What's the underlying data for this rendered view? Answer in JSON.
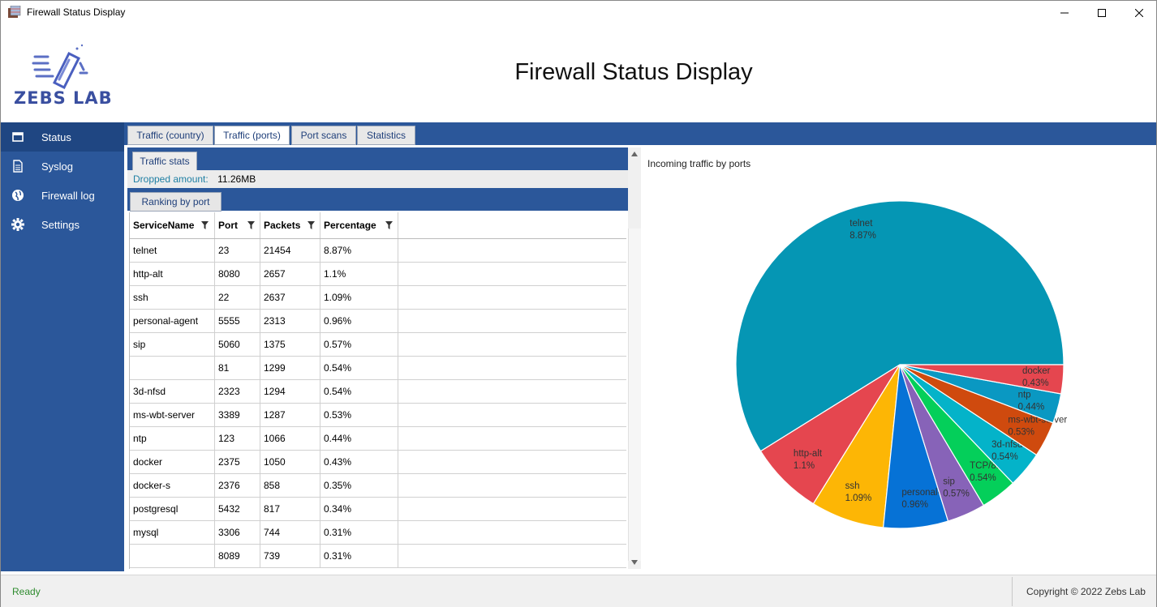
{
  "window": {
    "title": "Firewall Status Display"
  },
  "header": {
    "title": "Firewall Status Display",
    "logo_text": "ZEBS LAB"
  },
  "sidebar": {
    "items": [
      {
        "label": "Status",
        "icon": "window-icon"
      },
      {
        "label": "Syslog",
        "icon": "document-icon"
      },
      {
        "label": "Firewall log",
        "icon": "globe-icon"
      },
      {
        "label": "Settings",
        "icon": "gear-icon"
      }
    ]
  },
  "tabs": [
    {
      "label": "Traffic (country)"
    },
    {
      "label": "Traffic (ports)",
      "active": true
    },
    {
      "label": "Port scans"
    },
    {
      "label": "Statistics"
    }
  ],
  "stats": {
    "tab_label": "Traffic stats",
    "dropped_label": "Dropped amount:",
    "dropped_value": "11.26MB",
    "ranking_label": "Ranking by port"
  },
  "table": {
    "columns": [
      "ServiceName",
      "Port",
      "Packets",
      "Percentage"
    ],
    "rows": [
      [
        "telnet",
        "23",
        "21454",
        "8.87%"
      ],
      [
        "http-alt",
        "8080",
        "2657",
        "1.1%"
      ],
      [
        "ssh",
        "22",
        "2637",
        "1.09%"
      ],
      [
        "personal-agent",
        "5555",
        "2313",
        "0.96%"
      ],
      [
        "sip",
        "5060",
        "1375",
        "0.57%"
      ],
      [
        "",
        "81",
        "1299",
        "0.54%"
      ],
      [
        "3d-nfsd",
        "2323",
        "1294",
        "0.54%"
      ],
      [
        "ms-wbt-server",
        "3389",
        "1287",
        "0.53%"
      ],
      [
        "ntp",
        "123",
        "1066",
        "0.44%"
      ],
      [
        "docker",
        "2375",
        "1050",
        "0.43%"
      ],
      [
        "docker-s",
        "2376",
        "858",
        "0.35%"
      ],
      [
        "postgresql",
        "5432",
        "817",
        "0.34%"
      ],
      [
        "mysql",
        "3306",
        "744",
        "0.31%"
      ],
      [
        "",
        "8089",
        "739",
        "0.31%"
      ]
    ]
  },
  "chart_data": {
    "type": "pie",
    "title": "Incoming traffic by ports",
    "slices": [
      {
        "name": "telnet",
        "value": 8.87,
        "label": "8.87%",
        "color": "#0596b4"
      },
      {
        "name": "http-alt",
        "value": 1.1,
        "label": "1.1%",
        "color": "#e5464f"
      },
      {
        "name": "ssh",
        "value": 1.09,
        "label": "1.09%",
        "color": "#fdb605"
      },
      {
        "name": "personal-agent",
        "value": 0.96,
        "label": "0.96%",
        "color": "#0672d6"
      },
      {
        "name": "sip",
        "value": 0.57,
        "label": "0.57%",
        "color": "#8763b8"
      },
      {
        "name": "TCP/81",
        "value": 0.54,
        "label": "0.54%",
        "color": "#04cf5a"
      },
      {
        "name": "3d-nfsd",
        "value": 0.54,
        "label": "0.54%",
        "color": "#04b3c9"
      },
      {
        "name": "ms-wbt-server",
        "value": 0.53,
        "label": "0.53%",
        "color": "#cf4a0e"
      },
      {
        "name": "ntp",
        "value": 0.44,
        "label": "0.44%",
        "color": "#0a98c2"
      },
      {
        "name": "docker",
        "value": 0.43,
        "label": "0.43%",
        "color": "#e5464f"
      }
    ]
  },
  "status": {
    "ready": "Ready",
    "copyright": "Copyright © 2022 Zebs Lab"
  },
  "colors": {
    "accent": "#2b579a",
    "sidebar_active": "#1f4682",
    "status_ok": "#2e8b2e"
  }
}
